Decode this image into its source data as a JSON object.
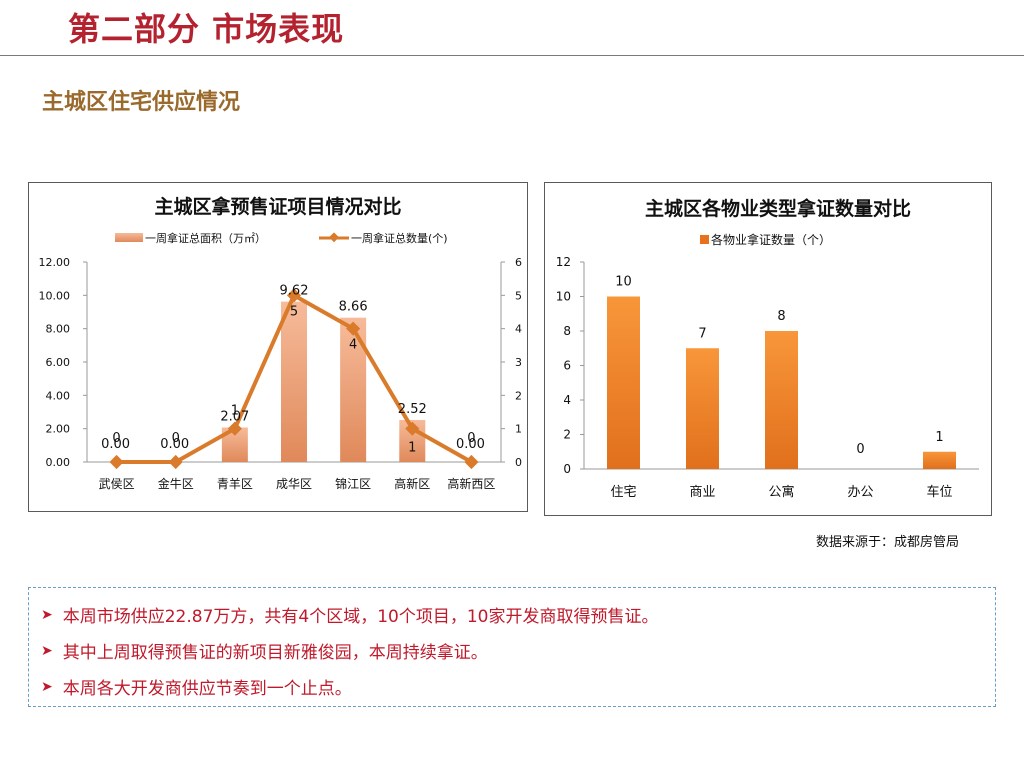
{
  "header": {
    "title": "第二部分 市场表现",
    "subtitle": "主城区住宅供应情况"
  },
  "colors": {
    "title_red": "#b5222f",
    "subtitle_brown": "#9a6a2d",
    "bar_orange": "#e8721c",
    "bar_light": "#f2a77e",
    "line": "#d97b2a",
    "note_red": "#c0192b",
    "note_border": "#6a9fc7"
  },
  "chart_data": [
    {
      "type": "bar+line",
      "title": "主城区拿预售证项目情况对比",
      "categories": [
        "武侯区",
        "金牛区",
        "青羊区",
        "成华区",
        "锦江区",
        "高新区",
        "高新西区"
      ],
      "series": [
        {
          "name": "一周拿证总面积（万㎡）",
          "type": "bar",
          "axis": "left",
          "values": [
            0,
            0,
            2.07,
            9.62,
            8.66,
            2.52,
            0
          ],
          "labels": [
            "0.00",
            "0.00",
            "2.07",
            "9.62",
            "8.66",
            "2.52",
            "0.00"
          ]
        },
        {
          "name": "一周拿证总数量(个)",
          "type": "line",
          "axis": "right",
          "values": [
            0,
            0,
            1,
            5,
            4,
            1,
            0
          ],
          "labels": [
            "0",
            "0",
            "1",
            "5",
            "4",
            "1",
            "0"
          ]
        }
      ],
      "y_left": {
        "min": 0,
        "max": 12,
        "step": 2,
        "ticks": [
          "0.00",
          "2.00",
          "4.00",
          "6.00",
          "8.00",
          "10.00",
          "12.00"
        ]
      },
      "y_right": {
        "min": 0,
        "max": 6,
        "step": 1,
        "ticks": [
          "0",
          "1",
          "2",
          "3",
          "4",
          "5",
          "6"
        ]
      },
      "legend": "top-center",
      "grid": false
    },
    {
      "type": "bar",
      "title": "主城区各物业类型拿证数量对比",
      "categories": [
        "住宅",
        "商业",
        "公寓",
        "办公",
        "车位"
      ],
      "series": [
        {
          "name": "各物业拿证数量（个）",
          "values": [
            10,
            7,
            8,
            0,
            1
          ]
        }
      ],
      "y": {
        "min": 0,
        "max": 12,
        "step": 2,
        "ticks": [
          "0",
          "2",
          "4",
          "6",
          "8",
          "10",
          "12"
        ]
      },
      "legend": "top-center",
      "grid": false
    }
  ],
  "source": "数据来源于：成都房管局",
  "notes": [
    "本周市场供应22.87万方，共有4个区域，10个项目，10家开发商取得预售证。",
    "其中上周取得预售证的新项目新雅俊园，本周持续拿证。",
    "本周各大开发商供应节奏到一个止点。"
  ]
}
